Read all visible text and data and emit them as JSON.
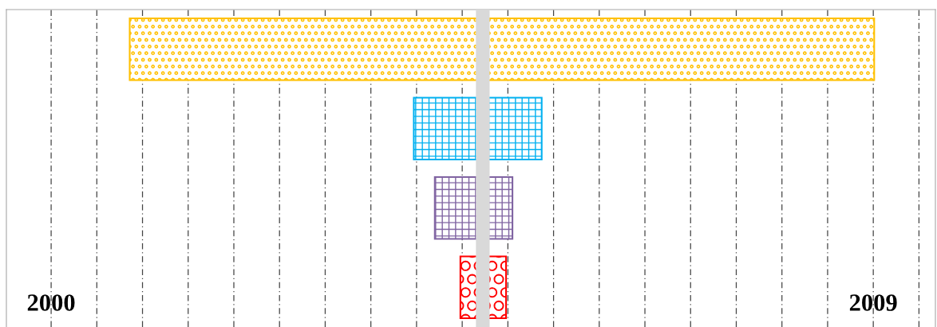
{
  "chart_data": {
    "type": "bar",
    "orientation": "horizontal",
    "categories": [
      null,
      null,
      null,
      null
    ],
    "base": [
      2000.86,
      2003.97,
      2004.2,
      2004.48
    ],
    "values": [
      8.15,
      1.4,
      0.85,
      0.5
    ],
    "colors": [
      "#ffc000",
      "#00b0f0",
      "#8064a2",
      "#ff0000"
    ],
    "xlim": [
      1999.51,
      2009.68
    ],
    "xticks": [
      2000,
      {
        "value": 2000.5,
        "label": null
      },
      {
        "value": 2001,
        "label": null
      },
      {
        "value": 2001.5,
        "label": null
      },
      {
        "value": 2002,
        "label": null
      },
      {
        "value": 2002.5,
        "label": null
      },
      {
        "value": 2003,
        "label": null
      },
      {
        "value": 2003.5,
        "label": null
      },
      {
        "value": 2004,
        "label": null
      },
      {
        "value": 2004.5,
        "label": null
      },
      {
        "value": 2005,
        "label": null
      },
      {
        "value": 2005.5,
        "label": null
      },
      {
        "value": 2006,
        "label": null
      },
      {
        "value": 2006.5,
        "label": null
      },
      {
        "value": 2007,
        "label": null
      },
      {
        "value": 2007.5,
        "label": null
      },
      {
        "value": 2008,
        "label": null
      },
      {
        "value": 2008.5,
        "label": null
      },
      2009,
      {
        "value": 2009.5,
        "label": null
      }
    ],
    "grid": "x",
    "tick_labels": "x",
    "bands": [
      {
        "axis": "x",
        "from": 2004.65,
        "to": 2004.8,
        "color": "#d9d9d9"
      }
    ]
  }
}
